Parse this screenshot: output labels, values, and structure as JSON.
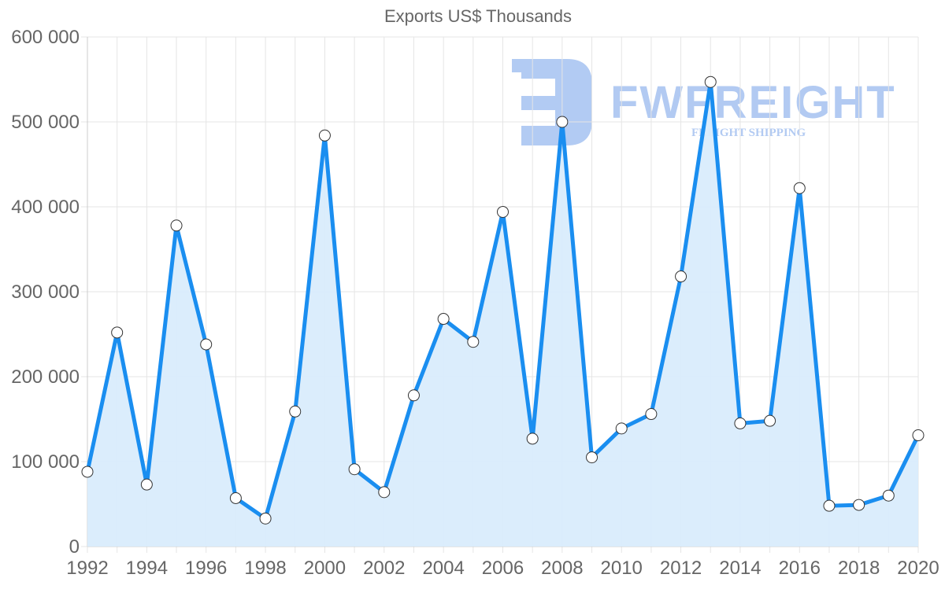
{
  "chart_data": {
    "type": "area",
    "title": "Exports US$ Thousands",
    "xlabel": "",
    "ylabel": "",
    "x": [
      1992,
      1993,
      1994,
      1995,
      1996,
      1997,
      1998,
      1999,
      2000,
      2001,
      2002,
      2003,
      2004,
      2005,
      2006,
      2007,
      2008,
      2009,
      2010,
      2011,
      2012,
      2013,
      2014,
      2015,
      2016,
      2017,
      2018,
      2019,
      2020
    ],
    "series": [
      {
        "name": "Exports US$ Thousands",
        "values": [
          88000,
          252000,
          73000,
          378000,
          238000,
          57000,
          33000,
          159000,
          484000,
          91000,
          64000,
          178000,
          268000,
          241000,
          394000,
          127000,
          500000,
          105000,
          139000,
          156000,
          318000,
          547000,
          145000,
          148000,
          422000,
          48000,
          49000,
          60000,
          131000
        ]
      }
    ],
    "x_tick_labels": [
      "1992",
      "1994",
      "1996",
      "1998",
      "2000",
      "2002",
      "2004",
      "2006",
      "2008",
      "2010",
      "2012",
      "2014",
      "2016",
      "2018",
      "2020"
    ],
    "y_tick_labels": [
      "0",
      "100 000",
      "200 000",
      "300 000",
      "400 000",
      "500 000",
      "600 000"
    ],
    "ylim": [
      0,
      600000
    ],
    "xlim": [
      1992,
      2020
    ],
    "grid": true,
    "legend": "none",
    "colors": {
      "line": "#1a8ef0",
      "fill": "#d9ecfc",
      "marker_fill": "#ffffff",
      "marker_stroke": "#333333",
      "grid": "#e5e5e5",
      "tick_text": "#666666"
    }
  },
  "watermark": {
    "brand": "FWFREIGHT",
    "tagline": "FREIGHT SHIPPING",
    "color": "#aec8f2"
  }
}
